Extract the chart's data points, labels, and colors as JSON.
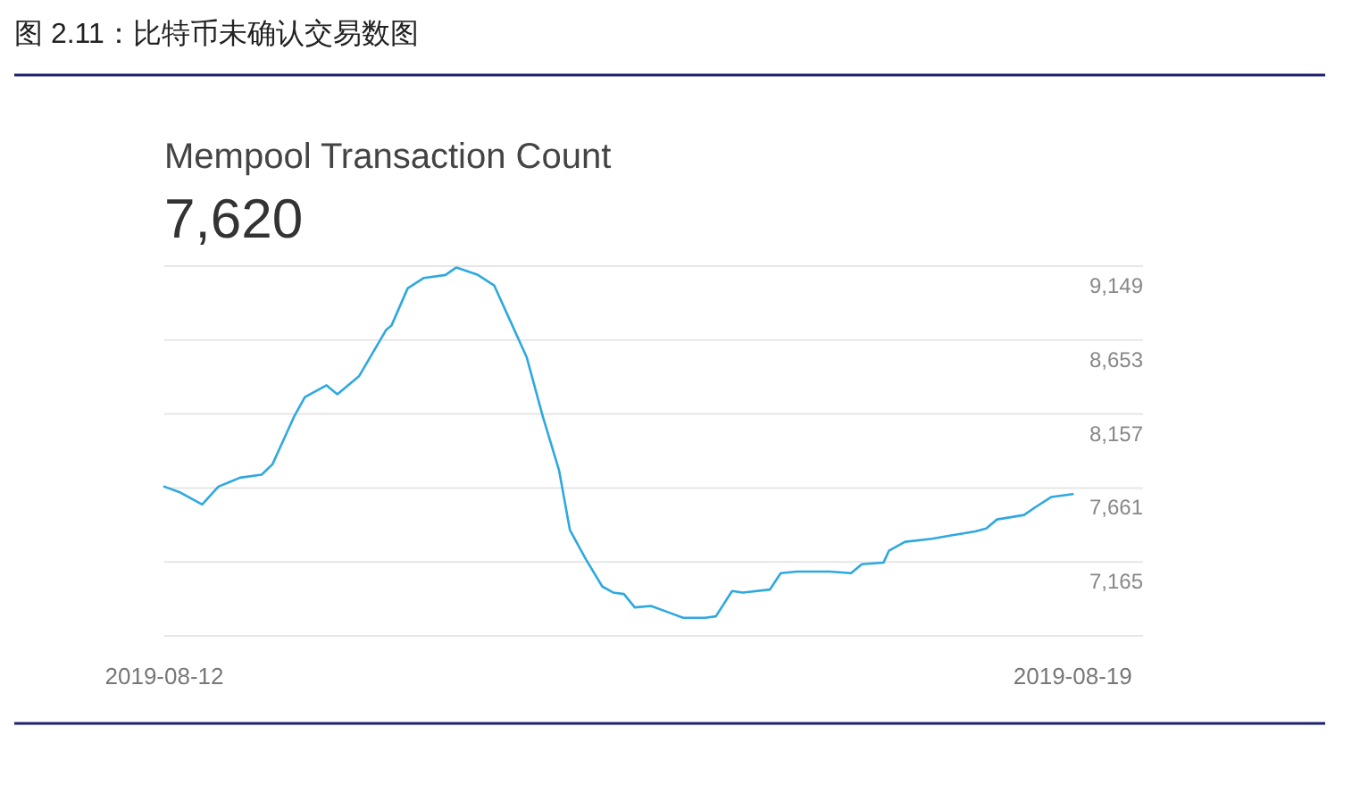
{
  "chart_data": {
    "type": "line",
    "title": "图 2.11：比特币未确认交易数图",
    "subtitle": "Mempool Transaction Count",
    "annotations": [
      "7,620"
    ],
    "x": [
      "2019-08-12T00:00",
      "2019-08-12T03:00",
      "2019-08-12T07:00",
      "2019-08-12T10:00",
      "2019-08-12T14:00",
      "2019-08-12T18:00",
      "2019-08-12T20:00",
      "2019-08-13T00:00",
      "2019-08-13T02:00",
      "2019-08-13T06:00",
      "2019-08-13T08:00",
      "2019-08-13T12:00",
      "2019-08-13T17:00",
      "2019-08-13T18:00",
      "2019-08-13T21:00",
      "2019-08-14T00:00",
      "2019-08-14T04:00",
      "2019-08-14T06:00",
      "2019-08-14T10:00",
      "2019-08-14T13:00",
      "2019-08-14T16:00",
      "2019-08-14T19:00",
      "2019-08-14T22:00",
      "2019-08-15T01:00",
      "2019-08-15T03:00",
      "2019-08-15T06:00",
      "2019-08-15T09:00",
      "2019-08-15T11:00",
      "2019-08-15T13:00",
      "2019-08-15T15:00",
      "2019-08-15T18:00",
      "2019-08-15T21:00",
      "2019-08-16T00:00",
      "2019-08-16T04:00",
      "2019-08-16T06:00",
      "2019-08-16T09:00",
      "2019-08-16T11:00",
      "2019-08-16T16:00",
      "2019-08-16T18:00",
      "2019-08-16T21:00",
      "2019-08-17T03:00",
      "2019-08-17T07:00",
      "2019-08-17T09:00",
      "2019-08-17T13:00",
      "2019-08-17T14:00",
      "2019-08-17T17:00",
      "2019-08-17T22:00",
      "2019-08-18T01:00",
      "2019-08-18T06:00",
      "2019-08-18T08:00",
      "2019-08-18T10:00",
      "2019-08-18T15:00",
      "2019-08-18T17:00",
      "2019-08-18T20:00",
      "2019-08-19T00:00"
    ],
    "series": [
      {
        "color": "#2ea8e0",
        "values": [
          7670,
          7630,
          7550,
          7670,
          7730,
          7750,
          7820,
          8140,
          8270,
          8350,
          8290,
          8410,
          8720,
          8750,
          9000,
          9070,
          9090,
          9140,
          9090,
          9020,
          8780,
          8540,
          8140,
          7780,
          7380,
          7180,
          7000,
          6960,
          6950,
          6860,
          6870,
          6830,
          6790,
          6790,
          6800,
          6970,
          6960,
          6980,
          7090,
          7100,
          7100,
          7090,
          7150,
          7160,
          7240,
          7300,
          7320,
          7340,
          7370,
          7390,
          7450,
          7480,
          7530,
          7600,
          7620
        ]
      }
    ],
    "xlim": [
      "2019-08-12",
      "2019-08-19T13:00"
    ],
    "xticks": [
      "2019-08-12",
      "2019-08-19"
    ],
    "ylim": [
      6669,
      9149
    ],
    "yticks": [
      {
        "value": 6669,
        "label": null
      },
      {
        "value": 7165,
        "label": "7,165"
      },
      {
        "value": 7661,
        "label": "7,661"
      },
      {
        "value": 8157,
        "label": "8,157"
      },
      {
        "value": 8653,
        "label": "8,653"
      },
      {
        "value": 9149,
        "label": "9,149"
      }
    ],
    "grid": "y",
    "line_style": "solid",
    "marker": "none"
  }
}
